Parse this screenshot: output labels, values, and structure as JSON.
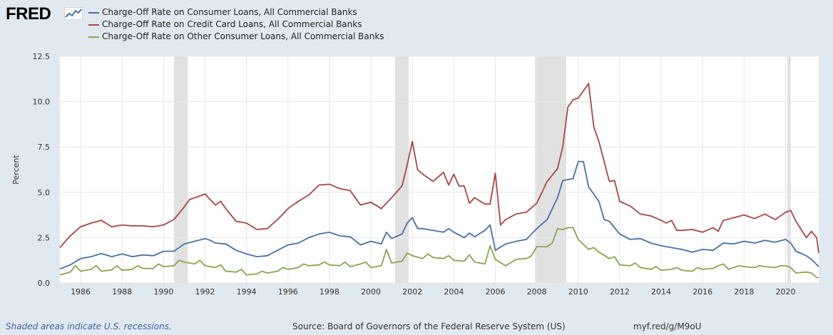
{
  "brand": {
    "logo_text": "FRED",
    "logo_icon": "line-chart-icon"
  },
  "footer": {
    "note": "Shaded areas indicate U.S. recessions.",
    "source": "Source: Board of Governors of the Federal Reserve System (US)",
    "url": "myf.red/g/M9oU"
  },
  "colors": {
    "background": "#e1e9f0",
    "plot_background": "#ffffff",
    "recession_shade": "#e1e1e1",
    "grid": "#e6e6e6"
  },
  "chart_data": {
    "type": "line",
    "ylabel": "Percent",
    "xlabel": "",
    "xlim": [
      1985.0,
      2021.6
    ],
    "ylim": [
      0,
      12.5
    ],
    "y_ticks": [
      "0.0",
      "2.5",
      "5.0",
      "7.5",
      "10.0",
      "12.5"
    ],
    "x_ticks": [
      "1986",
      "1988",
      "1990",
      "1992",
      "1994",
      "1996",
      "1998",
      "2000",
      "2002",
      "2004",
      "2006",
      "2008",
      "2010",
      "2012",
      "2014",
      "2016",
      "2018",
      "2020"
    ],
    "grid": true,
    "legend_position": "top-left",
    "recessions": [
      {
        "start": 1990.5,
        "end": 1991.17
      },
      {
        "start": 2001.17,
        "end": 2001.83
      },
      {
        "start": 2007.92,
        "end": 2009.42
      },
      {
        "start": 2020.08,
        "end": 2020.25
      }
    ],
    "series": [
      {
        "name": "Charge-Off Rate on Consumer Loans, All Commercial Banks",
        "color": "#4572a7",
        "points": [
          [
            1985.0,
            0.78
          ],
          [
            1985.5,
            1.0
          ],
          [
            1986.0,
            1.35
          ],
          [
            1986.5,
            1.45
          ],
          [
            1987.0,
            1.62
          ],
          [
            1987.5,
            1.45
          ],
          [
            1988.0,
            1.6
          ],
          [
            1988.5,
            1.45
          ],
          [
            1989.0,
            1.55
          ],
          [
            1989.5,
            1.5
          ],
          [
            1990.0,
            1.75
          ],
          [
            1990.5,
            1.75
          ],
          [
            1991.0,
            2.15
          ],
          [
            1991.5,
            2.3
          ],
          [
            1992.0,
            2.45
          ],
          [
            1992.25,
            2.35
          ],
          [
            1992.5,
            2.2
          ],
          [
            1993.0,
            2.15
          ],
          [
            1993.5,
            1.8
          ],
          [
            1994.0,
            1.6
          ],
          [
            1994.5,
            1.45
          ],
          [
            1995.0,
            1.5
          ],
          [
            1995.5,
            1.8
          ],
          [
            1996.0,
            2.1
          ],
          [
            1996.5,
            2.2
          ],
          [
            1997.0,
            2.5
          ],
          [
            1997.5,
            2.7
          ],
          [
            1998.0,
            2.8
          ],
          [
            1998.5,
            2.6
          ],
          [
            1999.0,
            2.55
          ],
          [
            1999.5,
            2.1
          ],
          [
            2000.0,
            2.3
          ],
          [
            2000.5,
            2.15
          ],
          [
            2000.75,
            2.8
          ],
          [
            2001.0,
            2.45
          ],
          [
            2001.5,
            2.7
          ],
          [
            2001.75,
            3.3
          ],
          [
            2002.0,
            3.6
          ],
          [
            2002.25,
            3.0
          ],
          [
            2002.5,
            3.0
          ],
          [
            2003.0,
            2.9
          ],
          [
            2003.5,
            2.8
          ],
          [
            2003.75,
            3.0
          ],
          [
            2004.0,
            2.8
          ],
          [
            2004.5,
            2.5
          ],
          [
            2004.75,
            2.75
          ],
          [
            2005.0,
            2.55
          ],
          [
            2005.5,
            2.9
          ],
          [
            2005.75,
            3.2
          ],
          [
            2006.0,
            1.8
          ],
          [
            2006.5,
            2.15
          ],
          [
            2007.0,
            2.3
          ],
          [
            2007.5,
            2.4
          ],
          [
            2008.0,
            3.0
          ],
          [
            2008.5,
            3.5
          ],
          [
            2009.0,
            4.7
          ],
          [
            2009.25,
            5.65
          ],
          [
            2009.5,
            5.7
          ],
          [
            2009.75,
            5.75
          ],
          [
            2010.0,
            6.7
          ],
          [
            2010.25,
            6.7
          ],
          [
            2010.5,
            5.3
          ],
          [
            2011.0,
            4.5
          ],
          [
            2011.25,
            3.5
          ],
          [
            2011.5,
            3.4
          ],
          [
            2012.0,
            2.7
          ],
          [
            2012.5,
            2.4
          ],
          [
            2013.0,
            2.45
          ],
          [
            2013.5,
            2.2
          ],
          [
            2014.0,
            2.05
          ],
          [
            2014.5,
            1.95
          ],
          [
            2015.0,
            1.85
          ],
          [
            2015.5,
            1.7
          ],
          [
            2016.0,
            1.85
          ],
          [
            2016.5,
            1.8
          ],
          [
            2017.0,
            2.2
          ],
          [
            2017.5,
            2.15
          ],
          [
            2018.0,
            2.3
          ],
          [
            2018.5,
            2.2
          ],
          [
            2019.0,
            2.35
          ],
          [
            2019.5,
            2.25
          ],
          [
            2020.0,
            2.4
          ],
          [
            2020.25,
            2.2
          ],
          [
            2020.5,
            1.75
          ],
          [
            2021.0,
            1.5
          ],
          [
            2021.25,
            1.3
          ],
          [
            2021.6,
            0.9
          ]
        ]
      },
      {
        "name": "Charge-Off Rate on Credit Card Loans, All Commercial Banks",
        "color": "#aa4643",
        "points": [
          [
            1985.0,
            1.95
          ],
          [
            1985.5,
            2.6
          ],
          [
            1986.0,
            3.1
          ],
          [
            1986.5,
            3.3
          ],
          [
            1987.0,
            3.45
          ],
          [
            1987.5,
            3.1
          ],
          [
            1988.0,
            3.2
          ],
          [
            1988.5,
            3.15
          ],
          [
            1989.0,
            3.15
          ],
          [
            1989.5,
            3.1
          ],
          [
            1990.0,
            3.2
          ],
          [
            1990.5,
            3.5
          ],
          [
            1991.0,
            4.2
          ],
          [
            1991.25,
            4.6
          ],
          [
            1991.5,
            4.7
          ],
          [
            1992.0,
            4.9
          ],
          [
            1992.5,
            4.3
          ],
          [
            1992.75,
            4.5
          ],
          [
            1993.0,
            4.1
          ],
          [
            1993.5,
            3.4
          ],
          [
            1994.0,
            3.3
          ],
          [
            1994.5,
            2.95
          ],
          [
            1995.0,
            3.0
          ],
          [
            1995.5,
            3.5
          ],
          [
            1996.0,
            4.1
          ],
          [
            1996.5,
            4.5
          ],
          [
            1997.0,
            4.85
          ],
          [
            1997.5,
            5.4
          ],
          [
            1998.0,
            5.45
          ],
          [
            1998.5,
            5.2
          ],
          [
            1999.0,
            5.1
          ],
          [
            1999.5,
            4.3
          ],
          [
            2000.0,
            4.45
          ],
          [
            2000.5,
            4.1
          ],
          [
            2001.0,
            4.7
          ],
          [
            2001.5,
            5.35
          ],
          [
            2001.75,
            6.5
          ],
          [
            2002.0,
            7.8
          ],
          [
            2002.25,
            6.25
          ],
          [
            2002.5,
            6.0
          ],
          [
            2003.0,
            5.6
          ],
          [
            2003.5,
            6.1
          ],
          [
            2003.75,
            5.4
          ],
          [
            2004.0,
            6.0
          ],
          [
            2004.25,
            5.35
          ],
          [
            2004.5,
            5.35
          ],
          [
            2004.75,
            4.4
          ],
          [
            2005.0,
            4.7
          ],
          [
            2005.5,
            4.35
          ],
          [
            2005.75,
            4.35
          ],
          [
            2006.0,
            6.05
          ],
          [
            2006.25,
            3.2
          ],
          [
            2006.5,
            3.5
          ],
          [
            2007.0,
            3.8
          ],
          [
            2007.5,
            3.9
          ],
          [
            2008.0,
            4.4
          ],
          [
            2008.5,
            5.6
          ],
          [
            2009.0,
            6.3
          ],
          [
            2009.25,
            7.5
          ],
          [
            2009.5,
            9.7
          ],
          [
            2009.75,
            10.1
          ],
          [
            2010.0,
            10.2
          ],
          [
            2010.5,
            11.0
          ],
          [
            2010.75,
            8.6
          ],
          [
            2011.0,
            7.8
          ],
          [
            2011.5,
            5.6
          ],
          [
            2011.75,
            5.65
          ],
          [
            2012.0,
            4.5
          ],
          [
            2012.5,
            4.25
          ],
          [
            2013.0,
            3.8
          ],
          [
            2013.5,
            3.7
          ],
          [
            2014.0,
            3.45
          ],
          [
            2014.25,
            3.3
          ],
          [
            2014.5,
            3.45
          ],
          [
            2014.75,
            2.9
          ],
          [
            2015.0,
            2.9
          ],
          [
            2015.5,
            2.95
          ],
          [
            2016.0,
            2.8
          ],
          [
            2016.5,
            3.05
          ],
          [
            2016.75,
            2.85
          ],
          [
            2017.0,
            3.45
          ],
          [
            2017.5,
            3.6
          ],
          [
            2018.0,
            3.75
          ],
          [
            2018.5,
            3.55
          ],
          [
            2019.0,
            3.8
          ],
          [
            2019.5,
            3.5
          ],
          [
            2020.0,
            3.9
          ],
          [
            2020.25,
            4.0
          ],
          [
            2020.5,
            3.4
          ],
          [
            2021.0,
            2.5
          ],
          [
            2021.25,
            2.85
          ],
          [
            2021.5,
            2.5
          ],
          [
            2021.6,
            1.65
          ]
        ]
      },
      {
        "name": "Charge-Off Rate on Other Consumer Loans, All Commercial Banks",
        "color": "#89a54e",
        "points": [
          [
            1985.0,
            0.45
          ],
          [
            1985.5,
            0.6
          ],
          [
            1985.75,
            0.95
          ],
          [
            1986.0,
            0.65
          ],
          [
            1986.5,
            0.75
          ],
          [
            1986.75,
            0.95
          ],
          [
            1987.0,
            0.65
          ],
          [
            1987.5,
            0.72
          ],
          [
            1987.75,
            0.95
          ],
          [
            1988.0,
            0.7
          ],
          [
            1988.5,
            0.75
          ],
          [
            1988.75,
            0.95
          ],
          [
            1989.0,
            0.8
          ],
          [
            1989.5,
            0.8
          ],
          [
            1989.75,
            1.05
          ],
          [
            1990.0,
            0.9
          ],
          [
            1990.5,
            0.95
          ],
          [
            1990.75,
            1.25
          ],
          [
            1991.0,
            1.15
          ],
          [
            1991.5,
            1.05
          ],
          [
            1991.75,
            1.25
          ],
          [
            1992.0,
            0.95
          ],
          [
            1992.5,
            0.85
          ],
          [
            1992.75,
            1.0
          ],
          [
            1993.0,
            0.65
          ],
          [
            1993.5,
            0.6
          ],
          [
            1993.75,
            0.75
          ],
          [
            1994.0,
            0.45
          ],
          [
            1994.5,
            0.5
          ],
          [
            1994.75,
            0.65
          ],
          [
            1995.0,
            0.55
          ],
          [
            1995.5,
            0.65
          ],
          [
            1995.75,
            0.85
          ],
          [
            1996.0,
            0.75
          ],
          [
            1996.5,
            0.85
          ],
          [
            1996.75,
            1.05
          ],
          [
            1997.0,
            0.95
          ],
          [
            1997.5,
            1.0
          ],
          [
            1997.75,
            1.15
          ],
          [
            1998.0,
            1.0
          ],
          [
            1998.5,
            0.95
          ],
          [
            1998.75,
            1.15
          ],
          [
            1999.0,
            0.9
          ],
          [
            1999.5,
            1.05
          ],
          [
            1999.75,
            1.15
          ],
          [
            2000.0,
            0.85
          ],
          [
            2000.5,
            0.95
          ],
          [
            2000.75,
            1.85
          ],
          [
            2001.0,
            1.1
          ],
          [
            2001.5,
            1.2
          ],
          [
            2001.75,
            1.65
          ],
          [
            2002.0,
            1.5
          ],
          [
            2002.5,
            1.35
          ],
          [
            2002.75,
            1.6
          ],
          [
            2003.0,
            1.4
          ],
          [
            2003.5,
            1.35
          ],
          [
            2003.75,
            1.5
          ],
          [
            2004.0,
            1.25
          ],
          [
            2004.5,
            1.2
          ],
          [
            2004.75,
            1.55
          ],
          [
            2005.0,
            1.15
          ],
          [
            2005.5,
            1.05
          ],
          [
            2005.75,
            2.05
          ],
          [
            2006.0,
            1.3
          ],
          [
            2006.5,
            0.95
          ],
          [
            2007.0,
            1.3
          ],
          [
            2007.5,
            1.35
          ],
          [
            2007.75,
            1.5
          ],
          [
            2008.0,
            2.0
          ],
          [
            2008.5,
            2.0
          ],
          [
            2008.75,
            2.2
          ],
          [
            2009.0,
            3.0
          ],
          [
            2009.25,
            2.95
          ],
          [
            2009.5,
            3.05
          ],
          [
            2009.75,
            3.05
          ],
          [
            2010.0,
            2.4
          ],
          [
            2010.5,
            1.85
          ],
          [
            2010.75,
            1.95
          ],
          [
            2011.0,
            1.7
          ],
          [
            2011.5,
            1.35
          ],
          [
            2011.75,
            1.45
          ],
          [
            2012.0,
            1.0
          ],
          [
            2012.5,
            0.95
          ],
          [
            2012.75,
            1.1
          ],
          [
            2013.0,
            0.85
          ],
          [
            2013.5,
            0.75
          ],
          [
            2013.75,
            0.9
          ],
          [
            2014.0,
            0.7
          ],
          [
            2014.5,
            0.75
          ],
          [
            2014.75,
            0.85
          ],
          [
            2015.0,
            0.7
          ],
          [
            2015.5,
            0.65
          ],
          [
            2015.75,
            0.85
          ],
          [
            2016.0,
            0.75
          ],
          [
            2016.5,
            0.8
          ],
          [
            2016.75,
            0.95
          ],
          [
            2017.0,
            1.05
          ],
          [
            2017.25,
            0.75
          ],
          [
            2017.5,
            0.85
          ],
          [
            2017.75,
            0.95
          ],
          [
            2018.0,
            0.9
          ],
          [
            2018.5,
            0.85
          ],
          [
            2018.75,
            0.95
          ],
          [
            2019.0,
            0.9
          ],
          [
            2019.5,
            0.85
          ],
          [
            2019.75,
            0.95
          ],
          [
            2020.0,
            0.95
          ],
          [
            2020.25,
            0.85
          ],
          [
            2020.5,
            0.55
          ],
          [
            2021.0,
            0.6
          ],
          [
            2021.25,
            0.55
          ],
          [
            2021.5,
            0.3
          ],
          [
            2021.6,
            0.3
          ]
        ]
      }
    ]
  }
}
